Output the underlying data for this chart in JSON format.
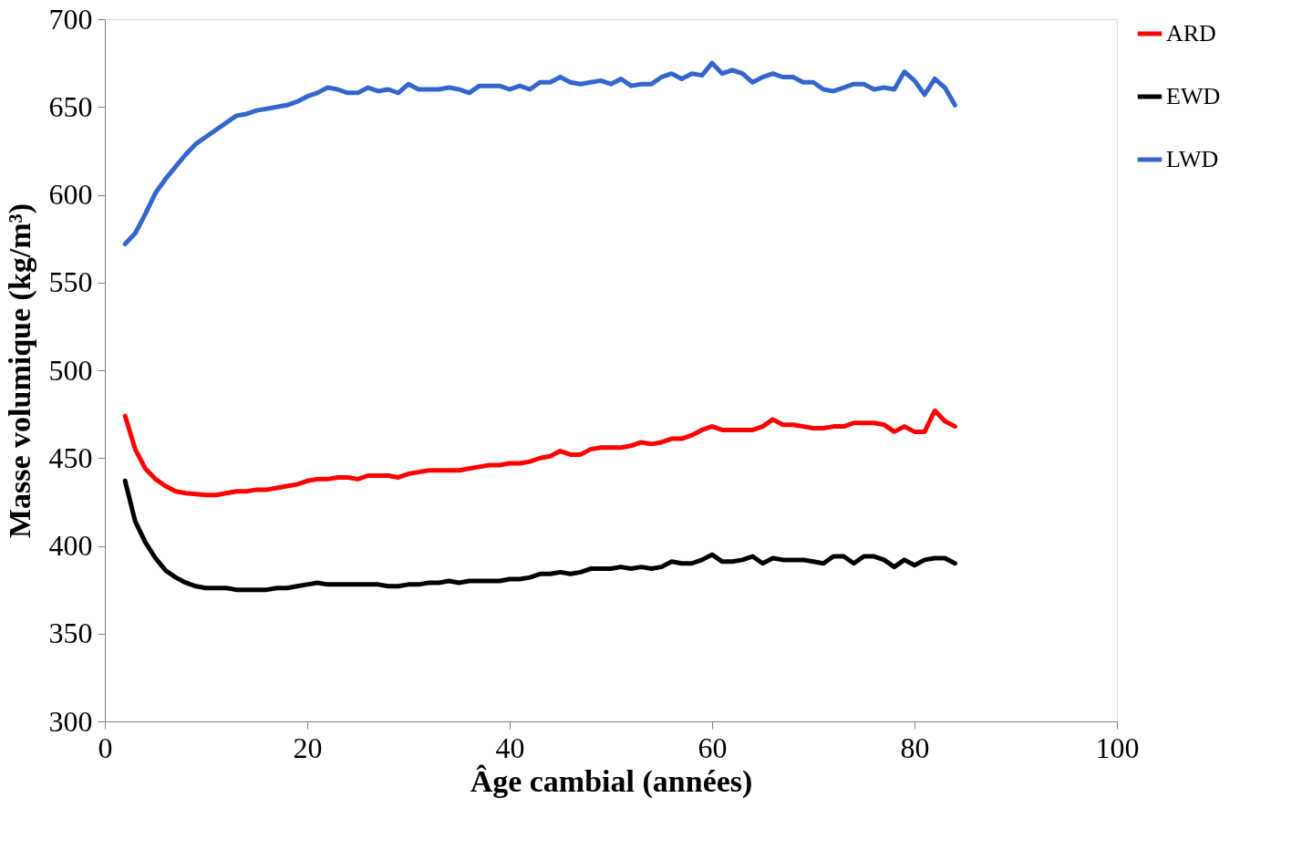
{
  "chart_data": {
    "type": "line",
    "xlabel": "Âge cambial (années)",
    "ylabel": "Masse volumique (kg/m³)",
    "x": [
      2,
      3,
      4,
      5,
      6,
      7,
      8,
      9,
      10,
      11,
      12,
      13,
      14,
      15,
      16,
      17,
      18,
      19,
      20,
      21,
      22,
      23,
      24,
      25,
      26,
      27,
      28,
      29,
      30,
      31,
      32,
      33,
      34,
      35,
      36,
      37,
      38,
      39,
      40,
      41,
      42,
      43,
      44,
      45,
      46,
      47,
      48,
      49,
      50,
      51,
      52,
      53,
      54,
      55,
      56,
      57,
      58,
      59,
      60,
      61,
      62,
      63,
      64,
      65,
      66,
      67,
      68,
      69,
      70,
      71,
      72,
      73,
      74,
      75,
      76,
      77,
      78,
      79,
      80,
      81,
      82,
      83,
      84
    ],
    "series": [
      {
        "name": "ARD",
        "color": "#ff0000",
        "values": [
          474,
          455,
          444,
          438,
          434,
          431,
          430,
          429.5,
          429,
          429,
          430,
          431,
          431,
          432,
          432,
          433,
          434,
          435,
          437,
          438,
          438,
          439,
          439,
          438,
          440,
          440,
          440,
          439,
          441,
          442,
          443,
          443,
          443,
          443,
          444,
          445,
          446,
          446,
          447,
          447,
          448,
          450,
          451,
          454,
          452,
          452,
          455,
          456,
          456,
          456,
          457,
          459,
          458,
          459,
          461,
          461,
          463,
          466,
          468,
          466,
          466,
          466,
          466,
          468,
          472,
          469,
          469,
          468,
          467,
          467,
          468,
          468,
          470,
          470,
          470,
          469,
          465,
          468,
          465,
          465,
          477,
          471,
          468
        ]
      },
      {
        "name": "EWD",
        "color": "#000000",
        "values": [
          437,
          414,
          402,
          393,
          386,
          382,
          379,
          377,
          376,
          376,
          376,
          375,
          375,
          375,
          375,
          376,
          376,
          377,
          378,
          379,
          378,
          378,
          378,
          378,
          378,
          378,
          377,
          377,
          378,
          378,
          379,
          379,
          380,
          379,
          380,
          380,
          380,
          380,
          381,
          381,
          382,
          384,
          384,
          385,
          384,
          385,
          387,
          387,
          387,
          388,
          387,
          388,
          387,
          388,
          391,
          390,
          390,
          392,
          395,
          391,
          391,
          392,
          394,
          390,
          393,
          392,
          392,
          392,
          391,
          390,
          394,
          394,
          390,
          394,
          394,
          392,
          388,
          392,
          389,
          392,
          393,
          393,
          390
        ]
      },
      {
        "name": "LWD",
        "color": "#3366cc",
        "values": [
          572,
          578,
          589,
          601,
          609,
          616,
          623,
          629,
          633,
          637,
          641,
          645,
          646,
          648,
          649,
          650,
          651,
          653,
          656,
          658,
          661,
          660,
          658,
          658,
          661,
          659,
          660,
          658,
          663,
          660,
          660,
          660,
          661,
          660,
          658,
          662,
          662,
          662,
          660,
          662,
          660,
          664,
          664,
          667,
          664,
          663,
          664,
          665,
          663,
          666,
          662,
          663,
          663,
          667,
          669,
          666,
          669,
          668,
          675,
          669,
          671,
          669,
          664,
          667,
          669,
          667,
          667,
          664,
          664,
          660,
          659,
          661,
          663,
          663,
          660,
          661,
          660,
          670,
          665,
          657,
          666,
          661,
          651
        ]
      }
    ],
    "xlim": [
      0,
      100
    ],
    "xticks": [
      0,
      20,
      40,
      60,
      80,
      100
    ],
    "ylim": [
      300,
      700
    ],
    "yticks": [
      300,
      350,
      400,
      450,
      500,
      550,
      600,
      650,
      700
    ],
    "grid": false,
    "legend": "right",
    "marker": "none",
    "line_style": "solid"
  }
}
